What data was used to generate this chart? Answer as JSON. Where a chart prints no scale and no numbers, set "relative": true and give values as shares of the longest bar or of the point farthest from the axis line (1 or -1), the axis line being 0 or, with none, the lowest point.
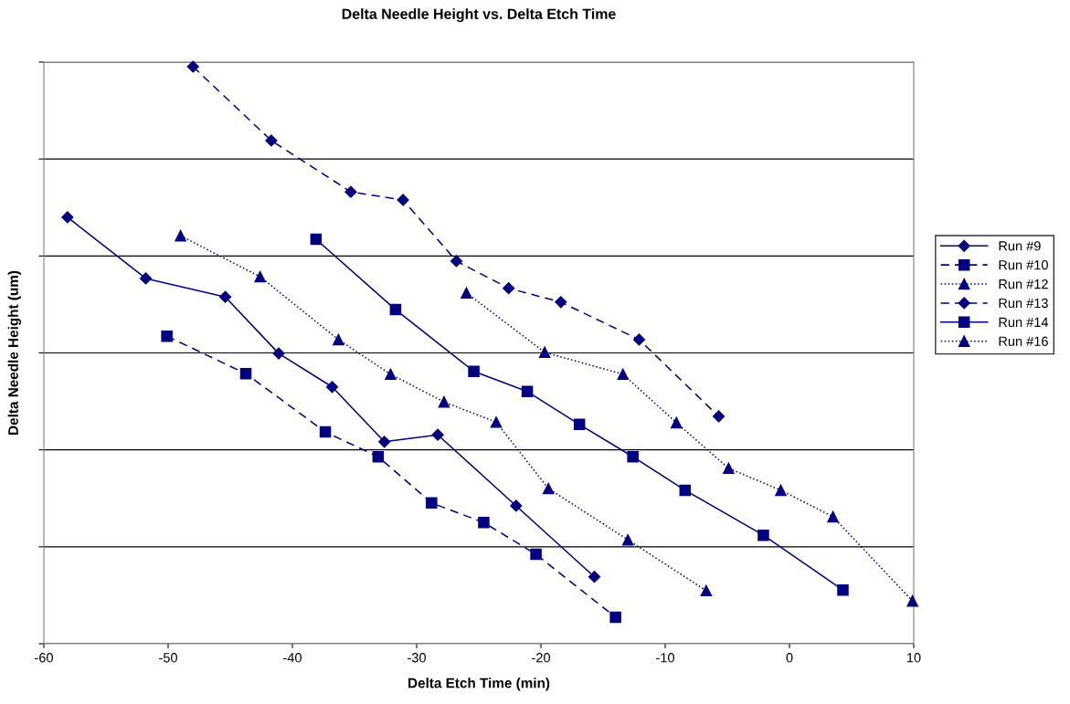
{
  "chart_data": {
    "type": "line",
    "title": "Delta Needle Height vs. Delta Etch Time",
    "xlabel": "Delta Etch Time (min)",
    "ylabel": "Delta Needle Height (um)",
    "relative": true,
    "xlim": [
      -60,
      10
    ],
    "xticks": [
      -60,
      -50,
      -40,
      -30,
      -20,
      -10,
      0,
      10
    ],
    "tick_labels": "x",
    "grid": "y",
    "legend": "right",
    "series": [
      {
        "name": "Run #9",
        "color": "#000080",
        "marker": "diamond",
        "line_style": "solid",
        "x": [
          -58.1,
          -51.8,
          -45.4,
          -41.1,
          -36.8,
          -32.6,
          -28.3,
          -22.0,
          -15.7
        ],
        "values": [
          0.739,
          0.633,
          0.601,
          0.503,
          0.445,
          0.35,
          0.362,
          0.239,
          0.116
        ]
      },
      {
        "name": "Run #10",
        "color": "#000080",
        "marker": "square",
        "line_style": "dashed",
        "x": [
          -50.1,
          -43.75,
          -37.35,
          -33.1,
          -28.8,
          -24.6,
          -20.4,
          -14.0
        ],
        "values": [
          0.533,
          0.468,
          0.367,
          0.324,
          0.244,
          0.21,
          0.155,
          0.046
        ]
      },
      {
        "name": "Run #12",
        "color": "#000080",
        "marker": "triangle",
        "line_style": "dotted",
        "x": [
          -49.0,
          -42.6,
          -36.3,
          -32.1,
          -27.8,
          -23.6,
          -19.4,
          -13.0,
          -6.7
        ],
        "values": [
          0.707,
          0.636,
          0.527,
          0.467,
          0.419,
          0.384,
          0.269,
          0.18,
          0.092
        ]
      },
      {
        "name": "Run #13",
        "color": "#000080",
        "marker": "diamond",
        "line_style": "dashed",
        "x": [
          -48.0,
          -41.7,
          -35.3,
          -31.1,
          -26.8,
          -22.6,
          -18.4,
          -12.1,
          -5.7
        ],
        "values": [
          1.0,
          0.872,
          0.783,
          0.769,
          0.663,
          0.616,
          0.592,
          0.527,
          0.394
        ]
      },
      {
        "name": "Run #14",
        "color": "#000080",
        "marker": "square",
        "line_style": "solid",
        "x": [
          -38.1,
          -31.7,
          -25.4,
          -21.1,
          -16.9,
          -12.6,
          -8.4,
          -2.1,
          4.3
        ],
        "values": [
          0.701,
          0.579,
          0.472,
          0.437,
          0.38,
          0.324,
          0.266,
          0.188,
          0.093
        ]
      },
      {
        "name": "Run #16",
        "color": "#000080",
        "marker": "triangle",
        "line_style": "dotted",
        "x": [
          -26.0,
          -19.7,
          -13.4,
          -9.1,
          -4.9,
          -0.7,
          3.5,
          9.9
        ],
        "values": [
          0.608,
          0.505,
          0.467,
          0.383,
          0.304,
          0.266,
          0.22,
          0.074
        ]
      }
    ]
  }
}
